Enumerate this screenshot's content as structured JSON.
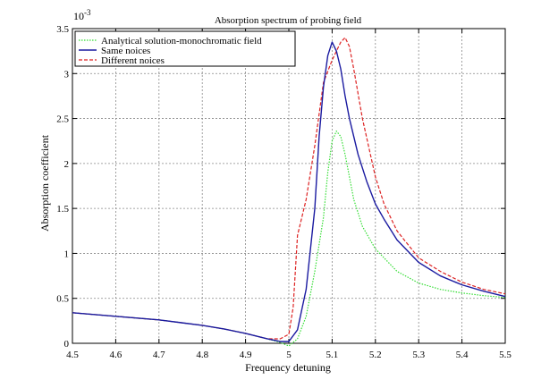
{
  "chart_data": {
    "type": "line",
    "title": "Absorption spectrum of probing field",
    "xlabel": "Frequency detuning",
    "ylabel": "Absorption coefficient",
    "y_multiplier": "10",
    "y_exponent": "-3",
    "xlim": [
      4.5,
      5.5
    ],
    "ylim": [
      0,
      3.5
    ],
    "xticks": [
      "4.5",
      "4.6",
      "4.7",
      "4.8",
      "4.9",
      "5",
      "5.1",
      "5.2",
      "5.3",
      "5.4",
      "5.5"
    ],
    "yticks": [
      "0",
      "0.5",
      "1",
      "1.5",
      "2",
      "2.5",
      "3",
      "3.5"
    ],
    "grid": true,
    "legend_position": "top-left",
    "series": [
      {
        "name": "Analytical solution-monochromatic field",
        "color": "#33dd33",
        "dash": "dotted",
        "x": [
          4.5,
          4.55,
          4.6,
          4.65,
          4.7,
          4.75,
          4.8,
          4.85,
          4.9,
          4.95,
          4.98,
          5.0,
          5.02,
          5.04,
          5.06,
          5.08,
          5.09,
          5.1,
          5.11,
          5.12,
          5.13,
          5.14,
          5.15,
          5.17,
          5.2,
          5.25,
          5.3,
          5.35,
          5.4,
          5.45,
          5.5
        ],
        "y": [
          0.34,
          0.32,
          0.3,
          0.28,
          0.26,
          0.23,
          0.2,
          0.16,
          0.11,
          0.05,
          0.01,
          -0.03,
          0.05,
          0.3,
          0.8,
          1.4,
          1.9,
          2.25,
          2.36,
          2.3,
          2.1,
          1.85,
          1.6,
          1.3,
          1.05,
          0.8,
          0.67,
          0.6,
          0.56,
          0.53,
          0.51
        ]
      },
      {
        "name": "Same noices",
        "color": "#1a1aa0",
        "dash": "solid",
        "x": [
          4.5,
          4.55,
          4.6,
          4.65,
          4.7,
          4.75,
          4.8,
          4.85,
          4.9,
          4.95,
          4.98,
          5.0,
          5.02,
          5.04,
          5.06,
          5.07,
          5.08,
          5.09,
          5.1,
          5.11,
          5.12,
          5.13,
          5.14,
          5.16,
          5.18,
          5.2,
          5.22,
          5.25,
          5.3,
          5.35,
          5.4,
          5.45,
          5.5
        ],
        "y": [
          0.34,
          0.32,
          0.3,
          0.28,
          0.26,
          0.23,
          0.2,
          0.16,
          0.11,
          0.05,
          0.02,
          0.02,
          0.15,
          0.6,
          1.5,
          2.3,
          2.85,
          3.2,
          3.35,
          3.25,
          3.05,
          2.75,
          2.5,
          2.1,
          1.8,
          1.55,
          1.38,
          1.15,
          0.9,
          0.75,
          0.65,
          0.58,
          0.52
        ]
      },
      {
        "name": "Different noices",
        "color": "#dd2222",
        "dash": "dashed",
        "x": [
          4.5,
          4.55,
          4.6,
          4.65,
          4.7,
          4.75,
          4.8,
          4.85,
          4.9,
          4.95,
          4.98,
          5.0,
          5.01,
          5.02,
          5.04,
          5.06,
          5.08,
          5.1,
          5.11,
          5.12,
          5.13,
          5.14,
          5.15,
          5.17,
          5.2,
          5.22,
          5.25,
          5.3,
          5.35,
          5.4,
          5.45,
          5.5
        ],
        "y": [
          0.34,
          0.32,
          0.3,
          0.28,
          0.26,
          0.23,
          0.2,
          0.16,
          0.11,
          0.05,
          0.05,
          0.1,
          0.4,
          1.2,
          1.6,
          2.2,
          2.9,
          3.15,
          3.25,
          3.35,
          3.4,
          3.3,
          3.05,
          2.5,
          1.85,
          1.55,
          1.25,
          0.95,
          0.8,
          0.68,
          0.6,
          0.55
        ]
      }
    ]
  }
}
